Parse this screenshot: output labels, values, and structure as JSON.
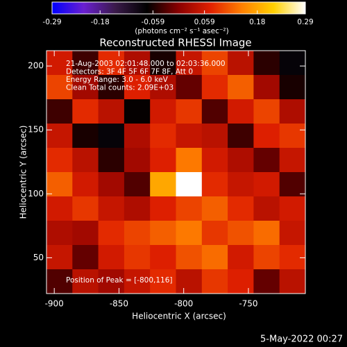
{
  "chart_data": {
    "type": "heatmap",
    "title": "Reconstructed RHESSI Image",
    "colorbar_label": "(photons cm⁻² s⁻¹ asec⁻²)",
    "annotations": [
      "21-Aug-2003 02:01:48.000 to 02:03:36.000",
      "Detectors: 3F 4F 5F 6F 7F 8F, Att 0",
      "Energy Range: 3.0 - 6.0 keV",
      "Clean     Total counts: 2.09E+03"
    ],
    "peak_label": "Position of Peak = [-800,116]",
    "timestamp": "5-May-2022 00:27",
    "x_label": "Heliocentric X (arcsec)",
    "y_label": "Heliocentric Y (arcsec)",
    "x": [
      -896,
      -876,
      -856,
      -836,
      -816,
      -796,
      -776,
      -756,
      -736,
      -716
    ],
    "y": [
      202.5,
      183.5,
      164.5,
      145.5,
      126.5,
      107.5,
      88.5,
      69.5,
      50.5,
      31.5
    ],
    "z": [
      [
        0.06,
        -0.04,
        0.08,
        0.03,
        -0.06,
        0.05,
        0.1,
        0.04,
        -0.05,
        -0.08
      ],
      [
        0.1,
        0.02,
        -0.05,
        0.07,
        0.03,
        -0.02,
        0.08,
        0.12,
        0.02,
        -0.06
      ],
      [
        -0.04,
        0.08,
        0.04,
        -0.07,
        0.06,
        0.09,
        -0.03,
        0.06,
        0.1,
        0.03
      ],
      [
        0.05,
        -0.06,
        -0.08,
        0.03,
        0.08,
        0.05,
        0.04,
        -0.04,
        0.07,
        0.09
      ],
      [
        0.08,
        0.04,
        -0.05,
        0.02,
        0.07,
        0.14,
        0.06,
        0.03,
        -0.02,
        0.05
      ],
      [
        0.12,
        0.06,
        0.02,
        -0.03,
        0.18,
        0.29,
        0.08,
        0.05,
        0.06,
        -0.03
      ],
      [
        0.06,
        0.09,
        0.05,
        0.03,
        0.07,
        0.1,
        0.12,
        0.08,
        0.04,
        0.06
      ],
      [
        0.03,
        0.02,
        0.08,
        0.1,
        0.12,
        0.14,
        0.09,
        0.11,
        0.13,
        0.05
      ],
      [
        0.05,
        -0.02,
        0.06,
        0.09,
        0.07,
        0.11,
        0.13,
        0.06,
        0.1,
        0.08
      ],
      [
        -0.03,
        0.04,
        0.02,
        0.05,
        0.08,
        0.04,
        0.09,
        0.07,
        -0.02,
        0.04
      ]
    ],
    "xlim": [
      -906,
      -706
    ],
    "ylim": [
      22,
      212
    ],
    "xticks": [
      -900,
      -850,
      -800,
      -750
    ],
    "yticks": [
      50,
      100,
      150,
      200
    ],
    "clim": [
      -0.29,
      0.29
    ],
    "cticks": [
      -0.29,
      -0.18,
      -0.059,
      0.059,
      0.18,
      0.29
    ],
    "colormap": [
      "#0000ff",
      "#6a1fd0",
      "#3a1a4a",
      "#000000",
      "#8a0000",
      "#e02000",
      "#ff8000",
      "#ffd000",
      "#ffffff"
    ]
  }
}
